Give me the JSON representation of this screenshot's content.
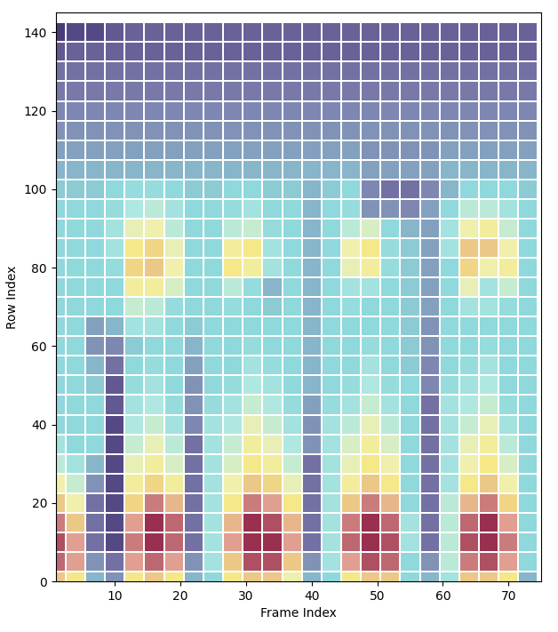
{
  "chart_data": {
    "type": "heatmap",
    "x_label": "Frame Index",
    "y_label": "Row Index",
    "xlim": [
      1,
      75
    ],
    "xticks": [
      10,
      20,
      30,
      40,
      50,
      60,
      70
    ],
    "ylim": [
      0,
      145
    ],
    "yticks": [
      0,
      20,
      40,
      60,
      80,
      100,
      120,
      140
    ],
    "x": [
      1,
      4,
      7,
      10,
      13,
      16,
      19,
      22,
      25,
      28,
      31,
      34,
      37,
      40,
      43,
      46,
      49,
      52,
      55,
      58,
      61,
      64,
      67,
      70,
      73
    ],
    "y": [
      0,
      5,
      10,
      15,
      20,
      25,
      30,
      35,
      40,
      45,
      50,
      55,
      60,
      65,
      70,
      75,
      80,
      85,
      90,
      95,
      100,
      105,
      110,
      115,
      120,
      125,
      130,
      135,
      140
    ],
    "cells": [
      [
        0.8,
        0.75,
        0.45,
        0.4,
        0.75,
        0.8,
        0.75,
        0.45,
        0.5,
        0.75,
        0.8,
        0.8,
        0.7,
        0.45,
        0.5,
        0.75,
        0.8,
        0.8,
        0.5,
        0.45,
        0.55,
        0.8,
        0.8,
        0.75,
        0.45
      ],
      [
        0.9,
        0.85,
        0.4,
        0.35,
        0.85,
        0.9,
        0.85,
        0.4,
        0.55,
        0.8,
        0.92,
        0.92,
        0.8,
        0.4,
        0.55,
        0.85,
        0.92,
        0.9,
        0.5,
        0.4,
        0.6,
        0.88,
        0.92,
        0.85,
        0.5
      ],
      [
        0.92,
        0.85,
        0.35,
        0.3,
        0.88,
        0.95,
        0.9,
        0.35,
        0.55,
        0.85,
        0.95,
        0.95,
        0.85,
        0.35,
        0.55,
        0.9,
        0.95,
        0.92,
        0.55,
        0.35,
        0.6,
        0.92,
        0.95,
        0.88,
        0.5
      ],
      [
        0.88,
        0.8,
        0.35,
        0.3,
        0.85,
        0.95,
        0.9,
        0.35,
        0.55,
        0.82,
        0.95,
        0.92,
        0.82,
        0.35,
        0.55,
        0.88,
        0.95,
        0.9,
        0.55,
        0.35,
        0.6,
        0.9,
        0.95,
        0.85,
        0.5
      ],
      [
        0.8,
        0.7,
        0.35,
        0.3,
        0.78,
        0.88,
        0.82,
        0.35,
        0.55,
        0.75,
        0.88,
        0.85,
        0.75,
        0.35,
        0.55,
        0.8,
        0.88,
        0.82,
        0.5,
        0.35,
        0.6,
        0.82,
        0.88,
        0.78,
        0.5
      ],
      [
        0.7,
        0.62,
        0.4,
        0.3,
        0.72,
        0.78,
        0.72,
        0.35,
        0.55,
        0.7,
        0.8,
        0.78,
        0.68,
        0.35,
        0.55,
        0.72,
        0.8,
        0.75,
        0.5,
        0.35,
        0.55,
        0.75,
        0.8,
        0.7,
        0.5
      ],
      [
        0.6,
        0.55,
        0.45,
        0.3,
        0.68,
        0.72,
        0.65,
        0.35,
        0.55,
        0.65,
        0.75,
        0.72,
        0.62,
        0.35,
        0.55,
        0.68,
        0.75,
        0.7,
        0.5,
        0.35,
        0.55,
        0.7,
        0.75,
        0.65,
        0.5
      ],
      [
        0.55,
        0.5,
        0.5,
        0.3,
        0.62,
        0.68,
        0.6,
        0.35,
        0.55,
        0.62,
        0.72,
        0.68,
        0.58,
        0.4,
        0.55,
        0.65,
        0.72,
        0.65,
        0.5,
        0.35,
        0.55,
        0.68,
        0.72,
        0.6,
        0.5
      ],
      [
        0.5,
        0.5,
        0.5,
        0.3,
        0.58,
        0.62,
        0.55,
        0.38,
        0.55,
        0.58,
        0.68,
        0.62,
        0.55,
        0.4,
        0.55,
        0.6,
        0.68,
        0.6,
        0.5,
        0.35,
        0.55,
        0.62,
        0.68,
        0.55,
        0.5
      ],
      [
        0.5,
        0.5,
        0.5,
        0.32,
        0.55,
        0.58,
        0.52,
        0.4,
        0.52,
        0.55,
        0.62,
        0.58,
        0.52,
        0.42,
        0.52,
        0.55,
        0.62,
        0.55,
        0.5,
        0.35,
        0.55,
        0.58,
        0.62,
        0.52,
        0.5
      ],
      [
        0.5,
        0.5,
        0.48,
        0.32,
        0.52,
        0.55,
        0.5,
        0.4,
        0.5,
        0.52,
        0.58,
        0.55,
        0.5,
        0.45,
        0.5,
        0.52,
        0.58,
        0.52,
        0.5,
        0.38,
        0.52,
        0.55,
        0.58,
        0.5,
        0.5
      ],
      [
        0.5,
        0.5,
        0.45,
        0.35,
        0.5,
        0.52,
        0.5,
        0.42,
        0.5,
        0.5,
        0.55,
        0.52,
        0.5,
        0.45,
        0.5,
        0.5,
        0.55,
        0.5,
        0.48,
        0.38,
        0.5,
        0.52,
        0.55,
        0.5,
        0.5
      ],
      [
        0.5,
        0.5,
        0.4,
        0.38,
        0.48,
        0.5,
        0.5,
        0.45,
        0.5,
        0.5,
        0.52,
        0.5,
        0.5,
        0.45,
        0.5,
        0.5,
        0.52,
        0.5,
        0.48,
        0.4,
        0.5,
        0.5,
        0.52,
        0.5,
        0.5
      ],
      [
        0.5,
        0.5,
        0.42,
        0.45,
        0.55,
        0.55,
        0.5,
        0.48,
        0.5,
        0.5,
        0.5,
        0.5,
        0.5,
        0.45,
        0.5,
        0.5,
        0.5,
        0.5,
        0.48,
        0.4,
        0.5,
        0.5,
        0.5,
        0.5,
        0.5
      ],
      [
        0.5,
        0.5,
        0.5,
        0.5,
        0.62,
        0.6,
        0.52,
        0.5,
        0.5,
        0.52,
        0.5,
        0.48,
        0.5,
        0.45,
        0.5,
        0.52,
        0.5,
        0.5,
        0.48,
        0.42,
        0.5,
        0.55,
        0.55,
        0.52,
        0.5
      ],
      [
        0.5,
        0.5,
        0.5,
        0.5,
        0.72,
        0.72,
        0.65,
        0.5,
        0.5,
        0.6,
        0.52,
        0.45,
        0.5,
        0.45,
        0.5,
        0.55,
        0.55,
        0.5,
        0.48,
        0.42,
        0.5,
        0.68,
        0.55,
        0.62,
        0.5
      ],
      [
        0.5,
        0.5,
        0.5,
        0.52,
        0.78,
        0.8,
        0.7,
        0.5,
        0.5,
        0.75,
        0.72,
        0.55,
        0.5,
        0.45,
        0.5,
        0.68,
        0.72,
        0.52,
        0.48,
        0.42,
        0.5,
        0.78,
        0.7,
        0.72,
        0.5
      ],
      [
        0.5,
        0.5,
        0.5,
        0.55,
        0.75,
        0.78,
        0.68,
        0.5,
        0.5,
        0.72,
        0.75,
        0.55,
        0.5,
        0.45,
        0.5,
        0.7,
        0.75,
        0.52,
        0.48,
        0.42,
        0.55,
        0.8,
        0.8,
        0.7,
        0.5
      ],
      [
        0.5,
        0.5,
        0.5,
        0.55,
        0.68,
        0.7,
        0.6,
        0.5,
        0.5,
        0.6,
        0.62,
        0.52,
        0.5,
        0.45,
        0.5,
        0.6,
        0.65,
        0.5,
        0.45,
        0.42,
        0.55,
        0.7,
        0.72,
        0.62,
        0.5
      ],
      [
        0.5,
        0.5,
        0.5,
        0.52,
        0.58,
        0.6,
        0.55,
        0.5,
        0.5,
        0.52,
        0.55,
        0.5,
        0.5,
        0.45,
        0.5,
        0.52,
        0.4,
        0.4,
        0.38,
        0.42,
        0.5,
        0.6,
        0.6,
        0.55,
        0.5
      ],
      [
        0.48,
        0.48,
        0.48,
        0.5,
        0.52,
        0.52,
        0.5,
        0.48,
        0.48,
        0.5,
        0.5,
        0.48,
        0.48,
        0.45,
        0.48,
        0.5,
        0.38,
        0.35,
        0.35,
        0.38,
        0.45,
        0.5,
        0.5,
        0.5,
        0.48
      ],
      [
        0.45,
        0.45,
        0.45,
        0.45,
        0.45,
        0.45,
        0.45,
        0.45,
        0.45,
        0.45,
        0.45,
        0.45,
        0.45,
        0.45,
        0.45,
        0.45,
        0.42,
        0.42,
        0.42,
        0.42,
        0.45,
        0.45,
        0.45,
        0.45,
        0.45
      ],
      [
        0.42,
        0.42,
        0.42,
        0.42,
        0.42,
        0.42,
        0.42,
        0.42,
        0.42,
        0.42,
        0.42,
        0.42,
        0.42,
        0.42,
        0.42,
        0.42,
        0.4,
        0.4,
        0.4,
        0.4,
        0.42,
        0.42,
        0.42,
        0.42,
        0.42
      ],
      [
        0.4,
        0.4,
        0.4,
        0.4,
        0.4,
        0.4,
        0.4,
        0.4,
        0.4,
        0.4,
        0.4,
        0.4,
        0.4,
        0.4,
        0.4,
        0.4,
        0.4,
        0.4,
        0.4,
        0.4,
        0.4,
        0.4,
        0.4,
        0.4,
        0.4
      ],
      [
        0.38,
        0.38,
        0.38,
        0.38,
        0.38,
        0.38,
        0.38,
        0.38,
        0.38,
        0.38,
        0.38,
        0.38,
        0.38,
        0.38,
        0.38,
        0.38,
        0.38,
        0.38,
        0.38,
        0.38,
        0.38,
        0.38,
        0.38,
        0.38,
        0.38
      ],
      [
        0.36,
        0.36,
        0.36,
        0.36,
        0.36,
        0.36,
        0.36,
        0.36,
        0.36,
        0.36,
        0.36,
        0.36,
        0.36,
        0.36,
        0.36,
        0.36,
        0.36,
        0.36,
        0.36,
        0.36,
        0.36,
        0.36,
        0.36,
        0.36,
        0.36
      ],
      [
        0.35,
        0.35,
        0.35,
        0.35,
        0.35,
        0.35,
        0.35,
        0.35,
        0.35,
        0.35,
        0.35,
        0.35,
        0.35,
        0.35,
        0.35,
        0.35,
        0.35,
        0.35,
        0.35,
        0.35,
        0.35,
        0.35,
        0.35,
        0.35,
        0.35
      ],
      [
        0.32,
        0.33,
        0.33,
        0.33,
        0.33,
        0.33,
        0.33,
        0.33,
        0.33,
        0.33,
        0.33,
        0.33,
        0.33,
        0.33,
        0.33,
        0.33,
        0.33,
        0.33,
        0.33,
        0.33,
        0.33,
        0.33,
        0.33,
        0.33,
        0.33
      ],
      [
        0.28,
        0.3,
        0.3,
        0.32,
        0.33,
        0.33,
        0.33,
        0.33,
        0.33,
        0.33,
        0.33,
        0.33,
        0.33,
        0.33,
        0.33,
        0.33,
        0.33,
        0.33,
        0.33,
        0.33,
        0.33,
        0.33,
        0.33,
        0.33,
        0.33
      ]
    ]
  }
}
